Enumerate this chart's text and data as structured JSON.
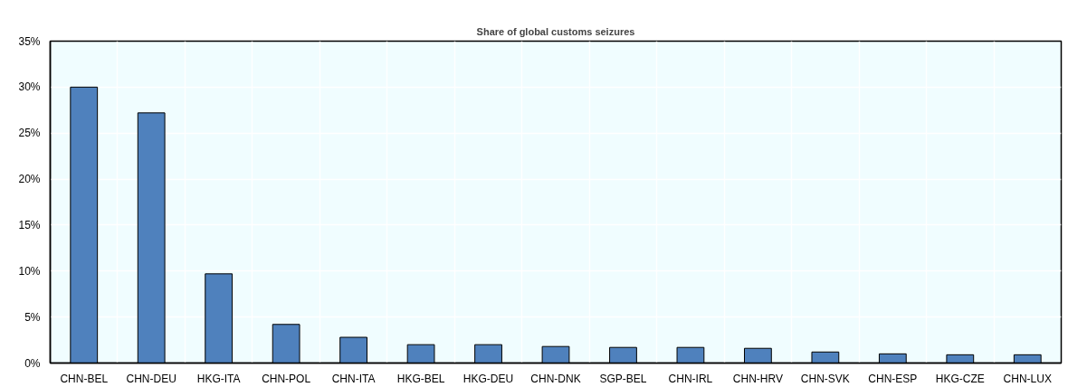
{
  "chart_data": {
    "type": "bar",
    "title": "Share of global customs seizures",
    "categories": [
      "CHN-BEL",
      "CHN-DEU",
      "HKG-ITA",
      "CHN-POL",
      "CHN-ITA",
      "HKG-BEL",
      "HKG-DEU",
      "CHN-DNK",
      "SGP-BEL",
      "CHN-IRL",
      "CHN-HRV",
      "CHN-SVK",
      "CHN-ESP",
      "HKG-CZE",
      "CHN-LUX"
    ],
    "values": [
      30.0,
      27.2,
      9.7,
      4.2,
      2.8,
      2.0,
      2.0,
      1.8,
      1.7,
      1.7,
      1.6,
      1.2,
      1.0,
      0.9,
      0.9
    ],
    "color": "#4f81bd",
    "ylim": [
      0,
      35
    ],
    "yticks": [
      {
        "value": 0,
        "label": "0%"
      },
      {
        "value": 5,
        "label": "5%"
      },
      {
        "value": 10,
        "label": "10%"
      },
      {
        "value": 15,
        "label": "15%"
      },
      {
        "value": 20,
        "label": "20%"
      },
      {
        "value": 25,
        "label": "25%"
      },
      {
        "value": 30,
        "label": "30%"
      },
      {
        "value": 35,
        "label": "35%"
      }
    ],
    "grid": true
  }
}
